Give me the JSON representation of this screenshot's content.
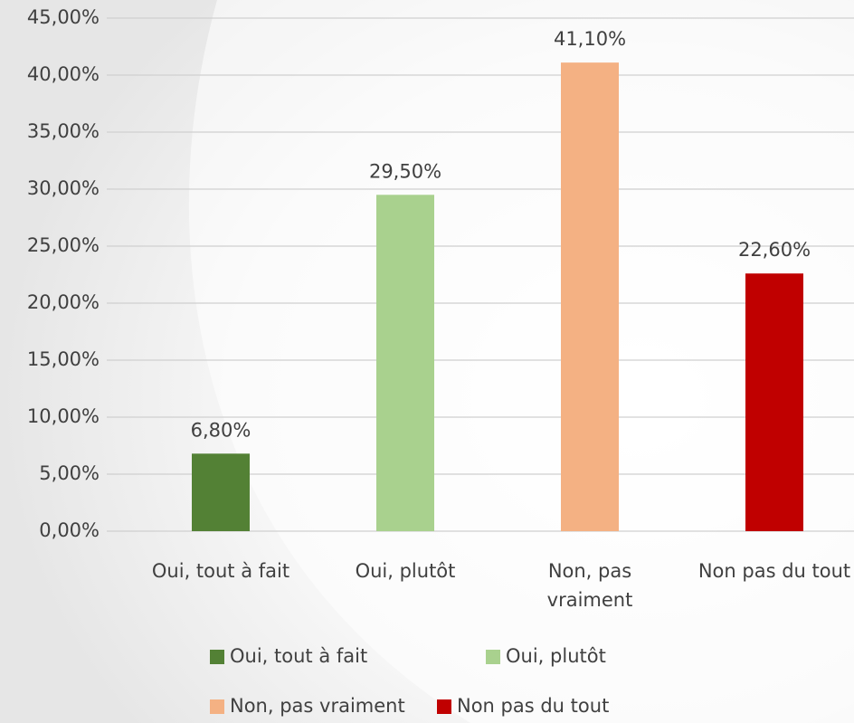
{
  "chart_data": {
    "type": "bar",
    "categories": [
      "Oui, tout à fait",
      "Oui, plutôt",
      "Non, pas vraiment",
      "Non pas du tout"
    ],
    "values": [
      6.8,
      29.5,
      41.1,
      22.6
    ],
    "value_labels": [
      "6,80%",
      "29,50%",
      "41,10%",
      "22,60%"
    ],
    "colors": [
      "#538135",
      "#a9d18e",
      "#f4b183",
      "#c00000"
    ],
    "ylim": [
      0,
      45
    ],
    "yticks": [
      {
        "value": 0,
        "label": "0,00%"
      },
      {
        "value": 5,
        "label": "5,00%"
      },
      {
        "value": 10,
        "label": "10,00%"
      },
      {
        "value": 15,
        "label": "15,00%"
      },
      {
        "value": 20,
        "label": "20,00%"
      },
      {
        "value": 25,
        "label": "25,00%"
      },
      {
        "value": 30,
        "label": "30,00%"
      },
      {
        "value": 35,
        "label": "35,00%"
      },
      {
        "value": 40,
        "label": "40,00%"
      },
      {
        "value": 45,
        "label": "45,00%"
      }
    ],
    "grid": true,
    "legend": "bottom"
  }
}
